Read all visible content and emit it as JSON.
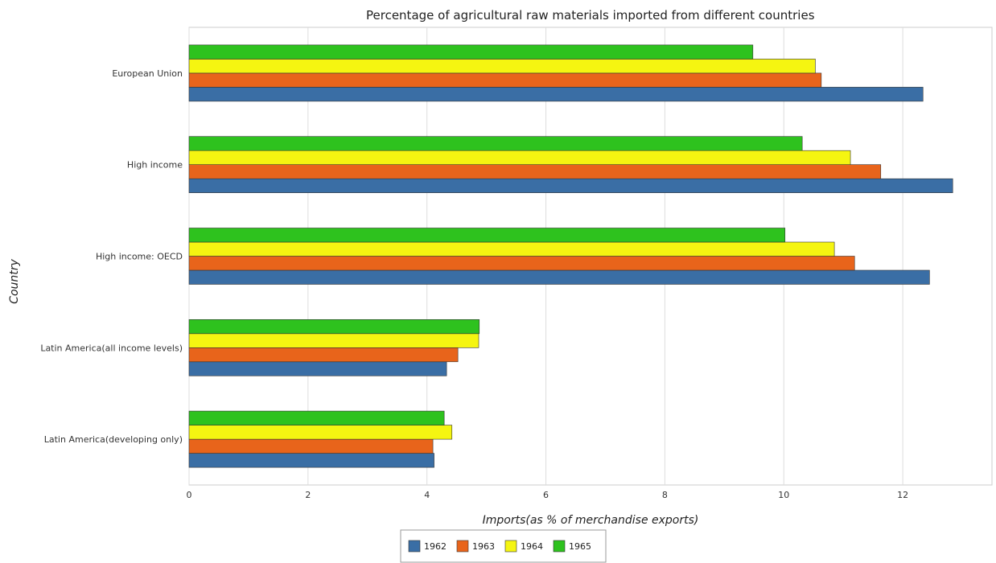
{
  "chart_data": {
    "type": "bar",
    "orientation": "horizontal",
    "title": "Percentage of agricultural raw materials imported from different countries",
    "xlabel": "Imports(as % of merchandise exports)",
    "ylabel": "Country",
    "xlim": [
      0,
      13.5
    ],
    "xticks": [
      0,
      2,
      4,
      6,
      8,
      10,
      12
    ],
    "grid": true,
    "legend_position": "bottom-center",
    "categories": [
      "European Union",
      "High income",
      "High income: OECD",
      "Latin America(all income levels)",
      "Latin America(developing only)"
    ],
    "series": [
      {
        "name": "1962",
        "color": "#3a6ea5",
        "values": [
          12.34,
          12.84,
          12.45,
          4.33,
          4.12
        ]
      },
      {
        "name": "1963",
        "color": "#e8641b",
        "values": [
          10.63,
          11.63,
          11.19,
          4.52,
          4.1
        ]
      },
      {
        "name": "1964",
        "color": "#f5f511",
        "values": [
          10.53,
          11.12,
          10.85,
          4.87,
          4.42
        ]
      },
      {
        "name": "1965",
        "color": "#2ec21e",
        "values": [
          9.48,
          10.31,
          10.02,
          4.88,
          4.29
        ]
      }
    ]
  }
}
